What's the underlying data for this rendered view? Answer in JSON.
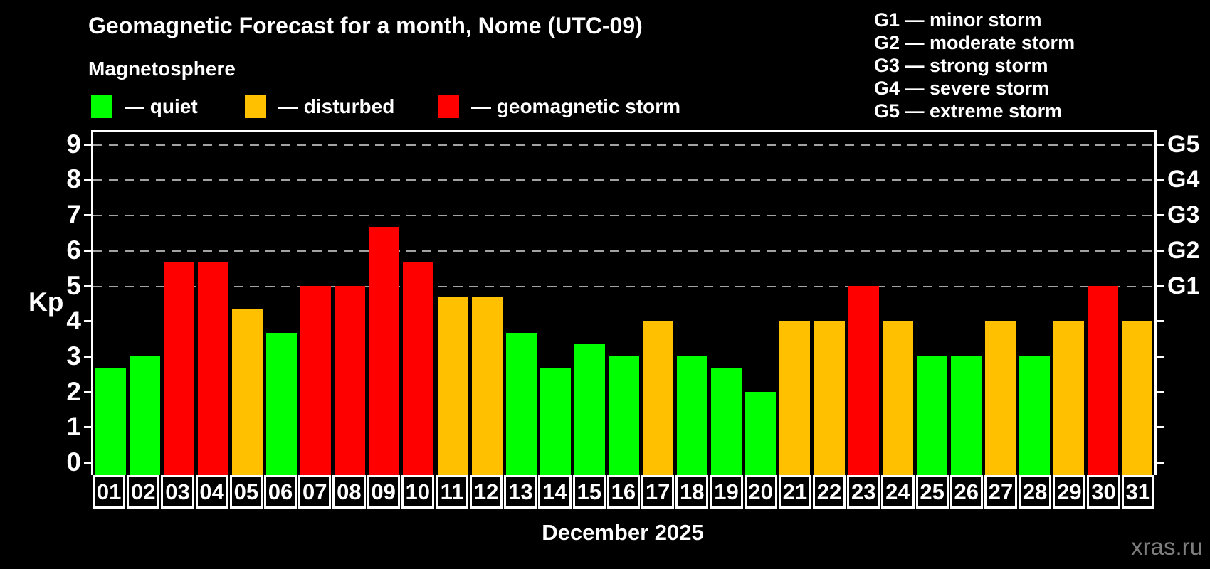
{
  "header": {
    "title": "Geomagnetic Forecast for a month, Nome (UTC-09)",
    "subtitle": "Magnetosphere"
  },
  "legend": {
    "items": [
      {
        "name": "quiet",
        "label": "— quiet",
        "color": "#00ff00"
      },
      {
        "name": "disturbed",
        "label": "— disturbed",
        "color": "#ffc000"
      },
      {
        "name": "storm",
        "label": "— geomagnetic storm",
        "color": "#ff0000"
      }
    ]
  },
  "g_legend": {
    "items": [
      "G1 — minor storm",
      "G2 — moderate storm",
      "G3 — strong storm",
      "G4 — severe storm",
      "G5 — extreme storm"
    ]
  },
  "axes": {
    "y_title": "Kp",
    "x_title": "December 2025",
    "y_ticks": [
      0,
      1,
      2,
      3,
      4,
      5,
      6,
      7,
      8,
      9
    ],
    "g_labels": [
      {
        "label": "G1",
        "kp": 5
      },
      {
        "label": "G2",
        "kp": 6
      },
      {
        "label": "G3",
        "kp": 7
      },
      {
        "label": "G4",
        "kp": 8
      },
      {
        "label": "G5",
        "kp": 9
      }
    ]
  },
  "footer": {
    "watermark": "xras.ru"
  },
  "chart_data": {
    "type": "bar",
    "title": "Geomagnetic Forecast for a month, Nome (UTC-09)",
    "subtitle": "Magnetosphere",
    "categories": [
      "01",
      "02",
      "03",
      "04",
      "05",
      "06",
      "07",
      "08",
      "09",
      "10",
      "11",
      "12",
      "13",
      "14",
      "15",
      "16",
      "17",
      "18",
      "19",
      "20",
      "21",
      "22",
      "23",
      "24",
      "25",
      "26",
      "27",
      "28",
      "29",
      "30",
      "31"
    ],
    "values": [
      2.67,
      3,
      5.67,
      5.67,
      4.33,
      3.67,
      5,
      5,
      6.67,
      5.67,
      4.67,
      4.67,
      3.67,
      2.67,
      3.33,
      3,
      4,
      3,
      2.67,
      2,
      4,
      4,
      5,
      4,
      3,
      3,
      4,
      3,
      4,
      5,
      4
    ],
    "statuses": [
      "quiet",
      "quiet",
      "storm",
      "storm",
      "disturbed",
      "quiet",
      "storm",
      "storm",
      "storm",
      "storm",
      "disturbed",
      "disturbed",
      "quiet",
      "quiet",
      "quiet",
      "quiet",
      "disturbed",
      "quiet",
      "quiet",
      "quiet",
      "disturbed",
      "disturbed",
      "storm",
      "disturbed",
      "quiet",
      "quiet",
      "disturbed",
      "quiet",
      "disturbed",
      "storm",
      "disturbed"
    ],
    "colors": {
      "quiet": "#00ff00",
      "disturbed": "#ffc000",
      "storm": "#ff0000"
    },
    "xlabel": "December 2025",
    "ylabel": "Kp",
    "ylim": [
      0,
      9.4
    ],
    "y_ticks": [
      0,
      1,
      2,
      3,
      4,
      5,
      6,
      7,
      8,
      9
    ],
    "gridlines_at": [
      5,
      6,
      7,
      8,
      9
    ],
    "g_scale_right": [
      "G1",
      "G2",
      "G3",
      "G4",
      "G5"
    ],
    "grid": "dashed-horizontal-at-storm-levels",
    "legend_position": "top-left"
  }
}
